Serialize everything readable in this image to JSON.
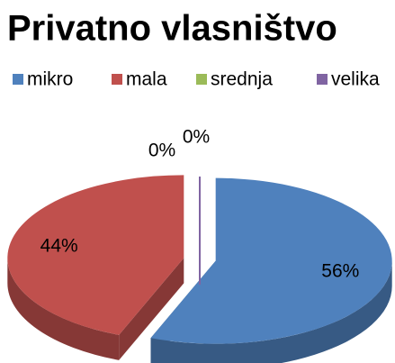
{
  "chart_data": {
    "type": "pie",
    "title": "Privatno vlasništvo",
    "categories": [
      "mikro",
      "mala",
      "srednja",
      "velika"
    ],
    "values": [
      56,
      44,
      0,
      0
    ],
    "value_labels": [
      "56%",
      "44%",
      "0%",
      "0%"
    ],
    "colors": [
      "#4f81bd",
      "#c0504d",
      "#9bbb59",
      "#8064a2"
    ],
    "legend": "top"
  }
}
